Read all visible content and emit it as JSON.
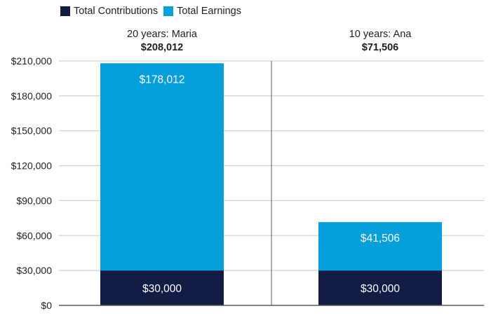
{
  "legend": {
    "contributions_label": "Total Contributions",
    "earnings_label": "Total Earnings"
  },
  "colors": {
    "contributions": "#131c44",
    "earnings": "#059fdb",
    "grid": "#c8c8c8",
    "axis": "#5a5a5a"
  },
  "chart_data": {
    "type": "bar",
    "stacked": true,
    "categories": [
      "20 years: Maria",
      "10 years: Ana"
    ],
    "category_totals": [
      "$208,012",
      "$71,506"
    ],
    "series": [
      {
        "name": "Total Contributions",
        "values": [
          30000,
          30000
        ],
        "labels": [
          "$30,000",
          "$30,000"
        ]
      },
      {
        "name": "Total Earnings",
        "values": [
          178012,
          41506
        ],
        "labels": [
          "$178,012",
          "$41,506"
        ]
      }
    ],
    "ylim": [
      0,
      210000
    ],
    "yticks": [
      0,
      30000,
      60000,
      90000,
      120000,
      150000,
      180000,
      210000
    ],
    "ytick_labels": [
      "$0",
      "$30,000",
      "$60,000",
      "$90,000",
      "$120,000",
      "$150,000",
      "$180,000",
      "$210,000"
    ],
    "grid": true,
    "legend_position": "top-left"
  }
}
